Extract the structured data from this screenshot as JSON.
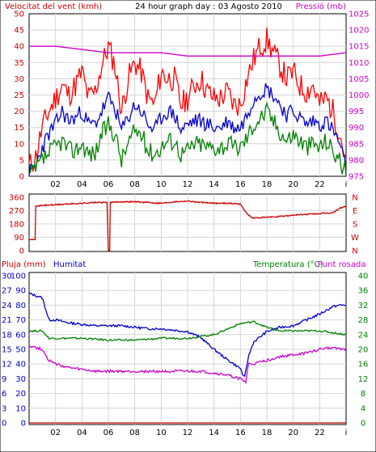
{
  "chart_data": [
    {
      "type": "line",
      "title": "24 hour graph day : 03 Agosto 2010",
      "left_axis_label": "Velocitat del vent (kmh)",
      "right_axis_label": "Pressió (mb)",
      "left_ticks": [
        "0",
        "5",
        "10",
        "15",
        "20",
        "25",
        "30",
        "35",
        "40",
        "45",
        "50"
      ],
      "right_ticks": [
        "975",
        "980",
        "985",
        "990",
        "995",
        "1000",
        "1005",
        "1010",
        "1015",
        "1020",
        "1025"
      ],
      "x_ticks": [
        "02",
        "04",
        "06",
        "08",
        "10",
        "12",
        "14",
        "16",
        "18",
        "20",
        "22"
      ],
      "left_ylim": [
        0,
        50
      ],
      "right_ylim": [
        975,
        1025
      ],
      "x_range": [
        0,
        24
      ],
      "grid": true,
      "colors": {
        "gust": "#ff0000",
        "average": "#0000cc",
        "min": "#008000",
        "pressure": "#cc00cc"
      },
      "series": [
        {
          "axis": "left",
          "color": "gust",
          "x": [
            0,
            0.5,
            1,
            1.5,
            2,
            2.5,
            3,
            3.5,
            4,
            4.5,
            5,
            5.5,
            6,
            6.5,
            7,
            7.5,
            8,
            8.5,
            9,
            9.5,
            10,
            10.5,
            11,
            11.5,
            12,
            12.5,
            13,
            13.5,
            14,
            14.5,
            15,
            15.5,
            16,
            16.5,
            17,
            17.5,
            18,
            18.5,
            19,
            19.5,
            20,
            20.5,
            21,
            21.5,
            22,
            22.5,
            23,
            23.5,
            24
          ],
          "values": [
            3,
            6,
            15,
            20,
            24,
            28,
            25,
            28,
            32,
            24,
            26,
            34,
            40,
            34,
            20,
            30,
            35,
            32,
            24,
            22,
            32,
            30,
            30,
            22,
            24,
            28,
            30,
            26,
            24,
            24,
            26,
            22,
            22,
            30,
            36,
            40,
            42,
            38,
            34,
            30,
            32,
            28,
            26,
            28,
            22,
            24,
            20,
            14,
            4
          ]
        },
        {
          "axis": "left",
          "color": "average",
          "x": [
            0,
            0.5,
            1,
            1.5,
            2,
            2.5,
            3,
            3.5,
            4,
            4.5,
            5,
            5.5,
            6,
            6.5,
            7,
            7.5,
            8,
            8.5,
            9,
            9.5,
            10,
            10.5,
            11,
            11.5,
            12,
            12.5,
            13,
            13.5,
            14,
            14.5,
            15,
            15.5,
            16,
            16.5,
            17,
            17.5,
            18,
            18.5,
            19,
            19.5,
            20,
            20.5,
            21,
            21.5,
            22,
            22.5,
            23,
            23.5,
            24
          ],
          "values": [
            1,
            3,
            9,
            13,
            16,
            20,
            17,
            18,
            20,
            16,
            16,
            20,
            24,
            21,
            14,
            18,
            22,
            20,
            16,
            14,
            18,
            20,
            19,
            14,
            16,
            17,
            17,
            16,
            15,
            15,
            17,
            15,
            15,
            19,
            24,
            26,
            27,
            25,
            22,
            19,
            20,
            18,
            16,
            17,
            16,
            17,
            14,
            10,
            2
          ]
        },
        {
          "axis": "left",
          "color": "min",
          "x": [
            0,
            0.5,
            1,
            1.5,
            2,
            2.5,
            3,
            3.5,
            4,
            4.5,
            5,
            5.5,
            6,
            6.5,
            7,
            7.5,
            8,
            8.5,
            9,
            9.5,
            10,
            10.5,
            11,
            11.5,
            12,
            12.5,
            13,
            13.5,
            14,
            14.5,
            15,
            15.5,
            16,
            16.5,
            17,
            17.5,
            18,
            18.5,
            19,
            19.5,
            20,
            20.5,
            21,
            21.5,
            22,
            22.5,
            23,
            23.5,
            24
          ],
          "values": [
            0,
            2,
            5,
            7,
            9,
            11,
            8,
            8,
            10,
            7,
            7,
            13,
            16,
            13,
            5,
            10,
            14,
            13,
            8,
            7,
            9,
            11,
            11,
            7,
            8,
            10,
            10,
            9,
            9,
            9,
            10,
            9,
            9,
            12,
            16,
            18,
            20,
            17,
            14,
            11,
            13,
            11,
            9,
            10,
            9,
            11,
            8,
            5,
            1
          ]
        },
        {
          "axis": "right",
          "color": "pressure",
          "x": [
            0,
            2,
            4,
            6,
            8,
            10,
            12,
            14,
            16,
            18,
            20,
            22,
            24
          ],
          "values": [
            1015,
            1015,
            1014,
            1013,
            1013,
            1013,
            1012,
            1012,
            1012,
            1012,
            1012,
            1012,
            1013
          ]
        }
      ]
    },
    {
      "type": "line",
      "title": "",
      "left_ticks": [
        "0",
        "90",
        "180",
        "270",
        "360"
      ],
      "right_ticks": [
        "N",
        "W",
        "S",
        "E",
        "N"
      ],
      "left_ylim": [
        0,
        360
      ],
      "x_ticks": [
        "02",
        "04",
        "06",
        "08",
        "10",
        "12",
        "14",
        "16",
        "18",
        "20",
        "22"
      ],
      "x_range": [
        0,
        24
      ],
      "grid": true,
      "colors": {
        "direction": "#cc0000"
      },
      "series": [
        {
          "color": "direction",
          "x": [
            0,
            0.4,
            0.5,
            1,
            2,
            3,
            4,
            5,
            5.9,
            6,
            6.05,
            6.1,
            7,
            8,
            9,
            10,
            11,
            12,
            13,
            14,
            15,
            16,
            16.4,
            16.8,
            17,
            18,
            19,
            20,
            21,
            22,
            23,
            23.5,
            24
          ],
          "values": [
            75,
            75,
            300,
            305,
            310,
            315,
            320,
            325,
            325,
            0,
            0,
            325,
            330,
            330,
            325,
            320,
            330,
            335,
            325,
            320,
            320,
            315,
            260,
            225,
            220,
            225,
            230,
            240,
            245,
            250,
            255,
            285,
            300
          ]
        }
      ]
    },
    {
      "type": "line",
      "title": "",
      "labels": {
        "rain": "Pluja (mm)",
        "humidity": "Humitat",
        "temp": "Temperatura (°C)",
        "dew": "Punt rosada"
      },
      "rain_ticks": [
        "0",
        "3",
        "6",
        "9",
        "12",
        "15",
        "18",
        "21",
        "24",
        "27",
        "30"
      ],
      "humidity_ticks": [
        "0",
        "10",
        "20",
        "30",
        "40",
        "50",
        "60",
        "70",
        "80",
        "90",
        "100"
      ],
      "temp_ticks": [
        "0",
        "4",
        "8",
        "12",
        "16",
        "20",
        "24",
        "28",
        "32",
        "36",
        "40"
      ],
      "x_ticks": [
        "02",
        "04",
        "06",
        "08",
        "10",
        "12",
        "14",
        "16",
        "18",
        "20",
        "22"
      ],
      "x_range": [
        0,
        24
      ],
      "grid": true,
      "colors": {
        "humidity": "#0000cc",
        "temp": "#008000",
        "dew": "#cc00cc",
        "rain": "#cc0000"
      },
      "series": [
        {
          "name": "Humitat",
          "axis": "humidity",
          "color": "humidity",
          "x": [
            0,
            1,
            1.5,
            2,
            3,
            4,
            5,
            6,
            7,
            8,
            9,
            10,
            11,
            12,
            13,
            14,
            15,
            16,
            16.3,
            16.6,
            17,
            18,
            19,
            20,
            21,
            22,
            23,
            23.5,
            24
          ],
          "values": [
            88,
            85,
            70,
            70,
            68,
            67,
            66,
            66,
            66,
            65,
            64,
            64,
            63,
            62,
            58,
            50,
            43,
            37,
            30,
            45,
            55,
            62,
            65,
            66,
            70,
            74,
            79,
            80,
            80
          ]
        },
        {
          "name": "Temperatura (°C)",
          "axis": "temp",
          "color": "temp",
          "x": [
            0,
            1,
            1.5,
            2,
            4,
            6,
            8,
            10,
            12,
            14,
            16,
            17,
            18,
            19,
            20,
            22,
            24
          ],
          "values": [
            25,
            25,
            23,
            23,
            23,
            22.5,
            22.5,
            23,
            23,
            24,
            27,
            27.5,
            26,
            25,
            25,
            25,
            24
          ]
        },
        {
          "name": "Punt rosada",
          "axis": "temp",
          "color": "dew",
          "x": [
            0,
            1,
            1.5,
            2,
            3,
            4,
            5,
            6,
            8,
            10,
            12,
            13,
            14,
            15,
            16,
            16.4,
            16.6,
            17,
            18,
            19,
            20,
            21,
            22,
            23,
            24
          ],
          "values": [
            21,
            20,
            17,
            16,
            15,
            14.5,
            14,
            14,
            14,
            14,
            14,
            14,
            13.5,
            13,
            12,
            11,
            16,
            16,
            17,
            18,
            18.5,
            19,
            20,
            20.5,
            20
          ]
        },
        {
          "name": "Pluja (mm)",
          "axis": "rain",
          "color": "rain",
          "x": [
            0,
            24
          ],
          "values": [
            0,
            0
          ]
        }
      ]
    }
  ]
}
